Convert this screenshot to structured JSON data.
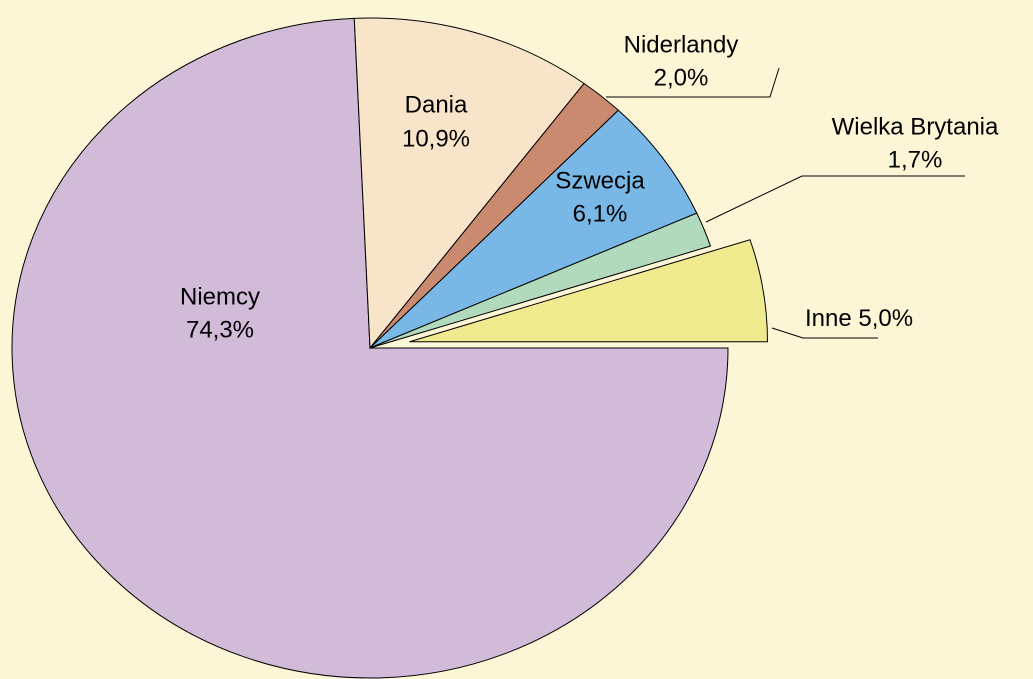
{
  "chart_data": {
    "type": "pie",
    "categories": [
      "Niemcy",
      "Dania",
      "Niderlandy",
      "Szwecja",
      "Wielka Brytania",
      "Inne"
    ],
    "values": [
      74.3,
      10.9,
      2.0,
      6.1,
      1.7,
      5.0
    ],
    "value_labels": [
      "74,3%",
      "10,9%",
      "2,0%",
      "6,1%",
      "1,7%",
      "5,0%"
    ],
    "colors": [
      "#d2bad9",
      "#f8e4c9",
      "#c98a6f",
      "#79b8e6",
      "#b1d9bc",
      "#efea8d"
    ]
  }
}
